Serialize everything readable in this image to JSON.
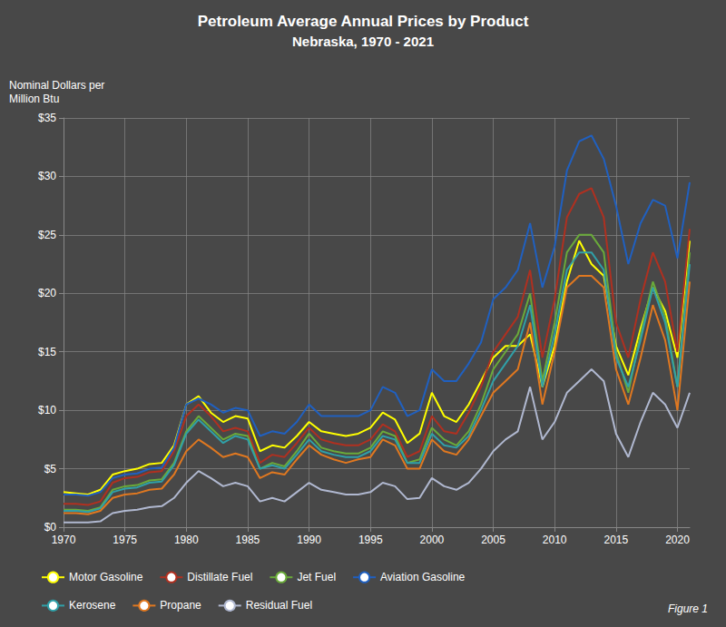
{
  "chart_data": {
    "type": "line",
    "title": "Petroleum Average Annual Prices by Product",
    "subtitle": "Nebraska, 1970 - 2021",
    "ylabel": "Nominal Dollars per\nMillion Btu",
    "annotations": [
      "Figure 1"
    ],
    "x": [
      1970,
      1971,
      1972,
      1973,
      1974,
      1975,
      1976,
      1977,
      1978,
      1979,
      1980,
      1981,
      1982,
      1983,
      1984,
      1985,
      1986,
      1987,
      1988,
      1989,
      1990,
      1991,
      1992,
      1993,
      1994,
      1995,
      1996,
      1997,
      1998,
      1999,
      2000,
      2001,
      2002,
      2003,
      2004,
      2005,
      2006,
      2007,
      2008,
      2009,
      2010,
      2011,
      2012,
      2013,
      2014,
      2015,
      2016,
      2017,
      2018,
      2019,
      2020,
      2021
    ],
    "series": [
      {
        "name": "Motor Gasoline",
        "color": "#ffff00",
        "values": [
          3.0,
          2.9,
          2.8,
          3.2,
          4.5,
          4.8,
          5.0,
          5.4,
          5.5,
          7.0,
          10.5,
          11.2,
          9.8,
          9.0,
          9.5,
          9.3,
          6.5,
          7.0,
          6.8,
          7.8,
          9.0,
          8.2,
          8.0,
          7.8,
          8.0,
          8.5,
          9.8,
          9.2,
          7.2,
          8.0,
          11.5,
          9.5,
          9.0,
          10.5,
          12.5,
          14.5,
          15.5,
          15.5,
          16.5,
          12.0,
          15.5,
          21.0,
          24.5,
          22.5,
          21.5,
          15.5,
          13.0,
          17.0,
          20.5,
          18.5,
          14.5,
          24.5
        ]
      },
      {
        "name": "Distillate Fuel",
        "color": "#b03020",
        "values": [
          2.0,
          2.0,
          1.9,
          2.2,
          3.8,
          4.2,
          4.3,
          4.7,
          4.8,
          6.5,
          9.5,
          10.5,
          9.5,
          8.2,
          8.5,
          8.2,
          5.5,
          6.2,
          6.0,
          7.2,
          8.5,
          7.5,
          7.2,
          7.0,
          7.0,
          7.5,
          8.8,
          8.2,
          6.0,
          6.5,
          9.5,
          8.2,
          8.0,
          9.8,
          12.0,
          15.0,
          16.5,
          18.0,
          22.0,
          14.5,
          19.5,
          26.5,
          28.5,
          29.0,
          26.5,
          17.5,
          14.5,
          19.5,
          23.5,
          21.0,
          15.0,
          25.5
        ]
      },
      {
        "name": "Jet Fuel",
        "color": "#6aaa3a",
        "values": [
          1.5,
          1.5,
          1.4,
          1.7,
          3.2,
          3.5,
          3.6,
          4.0,
          4.1,
          5.5,
          8.2,
          9.5,
          8.5,
          7.5,
          8.0,
          7.8,
          5.0,
          5.5,
          5.2,
          6.5,
          8.0,
          6.8,
          6.5,
          6.3,
          6.3,
          6.8,
          8.2,
          7.8,
          5.5,
          5.8,
          8.5,
          7.5,
          7.0,
          8.2,
          10.5,
          13.5,
          15.0,
          16.5,
          20.0,
          12.5,
          17.5,
          23.5,
          25.0,
          25.0,
          23.5,
          15.0,
          11.5,
          16.5,
          21.0,
          18.0,
          12.0,
          23.5
        ]
      },
      {
        "name": "Aviation Gasoline",
        "color": "#2060c0",
        "values": [
          2.8,
          2.8,
          2.7,
          3.0,
          4.2,
          4.5,
          4.6,
          5.0,
          5.1,
          6.8,
          10.5,
          11.0,
          10.5,
          9.8,
          10.2,
          10.0,
          7.8,
          8.2,
          8.0,
          9.0,
          10.5,
          9.5,
          9.5,
          9.5,
          9.5,
          10.0,
          12.0,
          11.5,
          9.5,
          10.0,
          13.5,
          12.5,
          12.5,
          14.0,
          15.8,
          19.5,
          20.5,
          22.0,
          26.0,
          20.5,
          24.0,
          30.5,
          33.0,
          33.5,
          31.5,
          27.5,
          22.5,
          26.0,
          28.0,
          27.5,
          23.0,
          29.5
        ]
      },
      {
        "name": "Kerosene",
        "color": "#30a0a8",
        "values": [
          1.4,
          1.4,
          1.3,
          1.6,
          3.0,
          3.3,
          3.4,
          3.8,
          3.9,
          5.3,
          8.0,
          9.2,
          8.2,
          7.2,
          7.8,
          7.5,
          5.0,
          5.3,
          5.0,
          6.2,
          7.5,
          6.5,
          6.2,
          6.0,
          6.0,
          6.5,
          7.8,
          7.5,
          5.5,
          5.5,
          8.0,
          7.0,
          6.8,
          7.8,
          10.0,
          12.5,
          14.0,
          15.5,
          19.0,
          12.0,
          16.5,
          22.0,
          23.5,
          23.5,
          22.0,
          14.5,
          12.0,
          16.0,
          20.5,
          17.5,
          12.0,
          22.5
        ]
      },
      {
        "name": "Propane",
        "color": "#e07820",
        "values": [
          1.2,
          1.2,
          1.1,
          1.4,
          2.5,
          2.8,
          2.9,
          3.2,
          3.3,
          4.5,
          6.5,
          7.5,
          6.8,
          6.0,
          6.3,
          6.0,
          4.2,
          4.7,
          4.5,
          5.8,
          7.0,
          6.2,
          5.8,
          5.5,
          5.8,
          6.0,
          7.5,
          7.0,
          5.0,
          5.0,
          7.5,
          6.5,
          6.2,
          7.5,
          9.5,
          11.5,
          12.5,
          13.5,
          17.5,
          10.5,
          15.0,
          20.5,
          21.5,
          21.5,
          20.5,
          13.5,
          10.5,
          14.5,
          19.0,
          16.0,
          10.0,
          21.0
        ]
      },
      {
        "name": "Residual Fuel",
        "color": "#b0b8d0",
        "values": [
          0.4,
          0.4,
          0.4,
          0.5,
          1.2,
          1.4,
          1.5,
          1.7,
          1.8,
          2.5,
          3.8,
          4.8,
          4.2,
          3.5,
          3.8,
          3.5,
          2.2,
          2.5,
          2.2,
          3.0,
          3.8,
          3.2,
          3.0,
          2.8,
          2.8,
          3.0,
          3.8,
          3.5,
          2.4,
          2.5,
          4.2,
          3.5,
          3.2,
          3.8,
          5.0,
          6.5,
          7.5,
          8.2,
          12.0,
          7.5,
          9.0,
          11.5,
          12.5,
          13.5,
          12.5,
          8.0,
          6.0,
          9.0,
          11.5,
          10.5,
          8.5,
          11.5
        ]
      }
    ],
    "xlim": [
      1970,
      2021
    ],
    "xticks": [
      1970,
      1975,
      1980,
      1985,
      1990,
      1995,
      2000,
      2005,
      2010,
      2015,
      2020
    ],
    "ylim": [
      0,
      35
    ],
    "yticks": [
      {
        "value": 0,
        "label": "$0"
      },
      {
        "value": 5,
        "label": "$5"
      },
      {
        "value": 10,
        "label": "$10"
      },
      {
        "value": 15,
        "label": "$15"
      },
      {
        "value": 20,
        "label": "$20"
      },
      {
        "value": 25,
        "label": "$25"
      },
      {
        "value": 30,
        "label": "$30"
      },
      {
        "value": 35,
        "label": "$35"
      }
    ],
    "grid": true,
    "legend": "bottom"
  }
}
